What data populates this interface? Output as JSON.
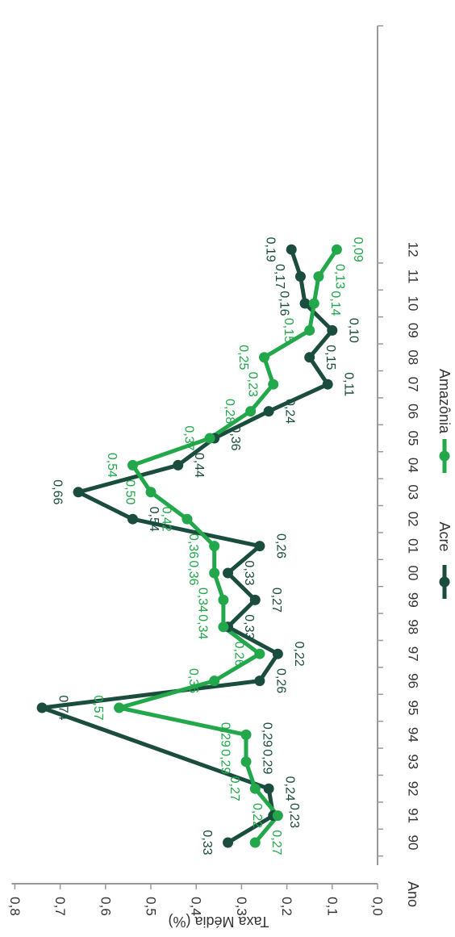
{
  "chart_data": {
    "type": "line",
    "ylabel": "Taxa Média (%)",
    "xlabel": "Ano",
    "categories": [
      "90",
      "91",
      "92",
      "93",
      "94",
      "95",
      "96",
      "97",
      "98",
      "99",
      "00",
      "01",
      "02",
      "03",
      "04",
      "05",
      "06",
      "07",
      "08",
      "09",
      "10",
      "11",
      "12"
    ],
    "ylim": [
      0,
      0.8
    ],
    "yticks": [
      "0,0",
      "0,1",
      "0,2",
      "0,3",
      "0,4",
      "0,5",
      "0,6",
      "0,7",
      "0,8"
    ],
    "grid": false,
    "legend_position": "bottom",
    "series": [
      {
        "name": "Acre",
        "color": "#1a4d3e",
        "values": [
          0.33,
          0.23,
          0.24,
          null,
          null,
          0.74,
          0.26,
          0.22,
          0.33,
          0.27,
          0.33,
          0.26,
          0.54,
          0.66,
          0.44,
          0.36,
          0.24,
          0.11,
          0.15,
          0.1,
          0.16,
          0.17,
          0.19
        ],
        "labels": [
          "0,33",
          "0,23",
          "0,24",
          "",
          "",
          "0,74",
          "0,26",
          "0,22",
          "0,33",
          "0,27",
          "0,33",
          "0,26",
          "0,54",
          "0,66",
          "0,44",
          "0,36",
          "0,24",
          "0,11",
          "0,15",
          "0,10",
          "0,16",
          "0,17",
          "0,19"
        ]
      },
      {
        "name": "Amazônia",
        "color": "#22a84a",
        "values": [
          0.27,
          0.22,
          0.27,
          0.29,
          0.29,
          0.57,
          0.36,
          0.26,
          0.34,
          0.34,
          0.36,
          0.36,
          0.42,
          0.5,
          0.54,
          0.37,
          0.28,
          0.23,
          0.25,
          0.15,
          0.14,
          0.13,
          0.09
        ],
        "labels": [
          "0,27",
          "0,22",
          "0,27",
          "0,29",
          "0,29",
          "0,57",
          "0,36",
          "0,26",
          "0,34",
          "0,34",
          "0,36",
          "0,36",
          "0,42",
          "0,50",
          "0,54",
          "0,37",
          "0,28",
          "0,23",
          "0,25",
          "0,15",
          "0,14",
          "0,13",
          "0,09"
        ]
      }
    ],
    "extra_labels": [
      {
        "series": 0,
        "index": 3,
        "text": "0,29"
      },
      {
        "series": 0,
        "index": 4,
        "text": "0,29"
      }
    ]
  }
}
